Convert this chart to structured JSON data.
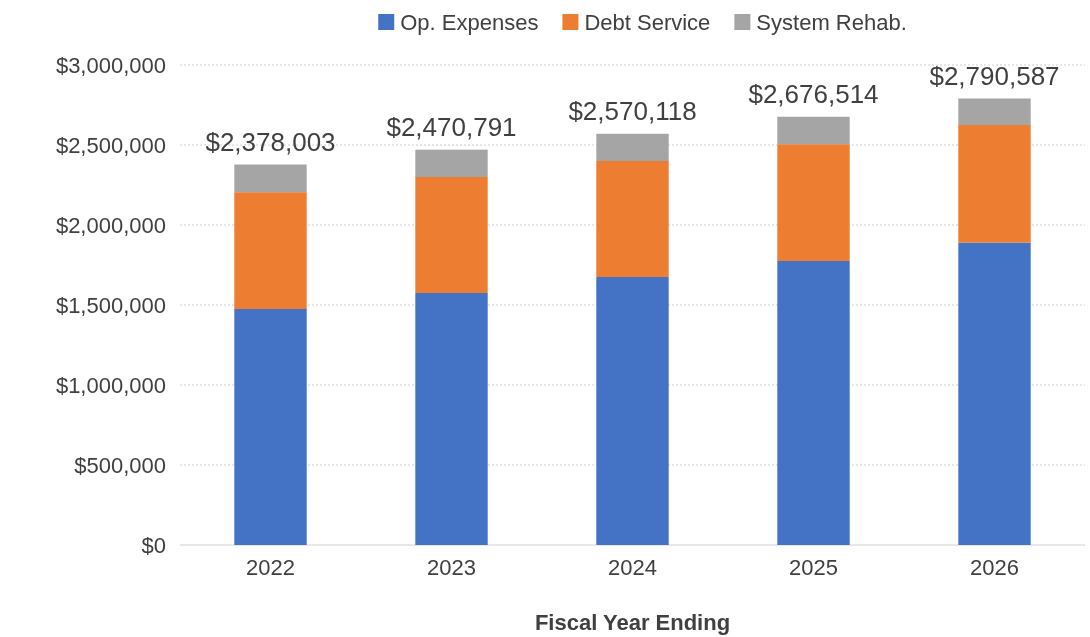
{
  "chart_data": {
    "type": "bar",
    "stacked": true,
    "xlabel": "Fiscal Year Ending",
    "categories": [
      "2022",
      "2023",
      "2024",
      "2025",
      "2026"
    ],
    "series": [
      {
        "name": "Op. Expenses",
        "color": "#4472c4",
        "values": [
          1475000,
          1575000,
          1675000,
          1775000,
          1890000
        ]
      },
      {
        "name": "Debt Service",
        "color": "#ed7d31",
        "values": [
          730000,
          725000,
          725000,
          730000,
          735000
        ]
      },
      {
        "name": "System Rehab.",
        "color": "#a5a5a5",
        "values": [
          173003,
          170791,
          170118,
          171514,
          165587
        ]
      }
    ],
    "totals": [
      "$2,378,003",
      "$2,470,791",
      "$2,570,118",
      "$2,676,514",
      "$2,790,587"
    ],
    "ylim": [
      0,
      3000000
    ],
    "yticks": [
      {
        "value": 0,
        "label": "$0"
      },
      {
        "value": 500000,
        "label": "$500,000"
      },
      {
        "value": 1000000,
        "label": "$1,000,000"
      },
      {
        "value": 1500000,
        "label": "$1,500,000"
      },
      {
        "value": 2000000,
        "label": "$2,000,000"
      },
      {
        "value": 2500000,
        "label": "$2,500,000"
      },
      {
        "value": 3000000,
        "label": "$3,000,000"
      }
    ],
    "grid": "y",
    "legend": "top"
  }
}
